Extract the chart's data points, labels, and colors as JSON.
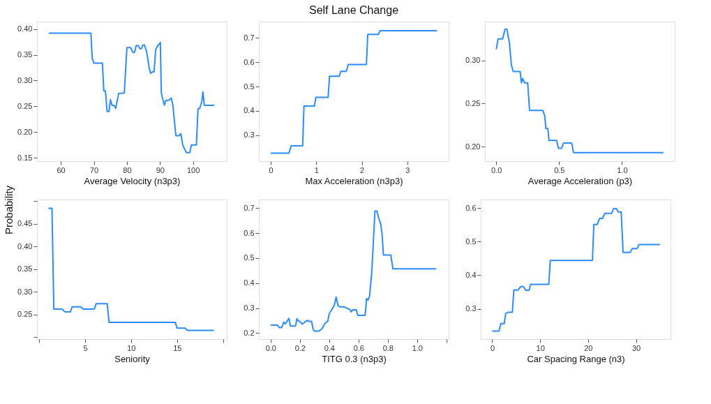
{
  "chart_data": [
    {
      "type": "line",
      "ylabel": "Probability",
      "xlabel": "Average Velocity (n3p3)",
      "xlim": [
        52.8,
        110.2
      ],
      "ylim": [
        0.1434,
        0.4145
      ],
      "xticks": [
        60,
        70,
        80,
        90,
        100
      ],
      "yticks": [
        {
          "value": 0.15,
          "label": "0.15"
        },
        {
          "value": 0.2,
          "label": "0.20"
        },
        {
          "value": 0.25,
          "label": "0.25"
        },
        {
          "value": 0.3,
          "label": "0.30"
        },
        {
          "value": 0.35,
          "label": "0.35"
        },
        {
          "value": 0.4,
          "label": "0.40"
        }
      ],
      "series": [
        {
          "color": "#2b8cff",
          "x": [
            56.4,
            69.1,
            69.5,
            70,
            72.6,
            73,
            73.5,
            74,
            74.6,
            75,
            75.5,
            76.1,
            76.6,
            77.5,
            79.2,
            80,
            81.1,
            81.8,
            82.3,
            82.8,
            83.4,
            83.9,
            84.4,
            84.8,
            85.3,
            86,
            86.7,
            87.2,
            87.7,
            88.2,
            88.7,
            89.4,
            89.7,
            90.1,
            90.4,
            91.3,
            91.7,
            92.7,
            93.4,
            93.9,
            94.8,
            95.8,
            96.3,
            96.9,
            98,
            99,
            99.5,
            101,
            101.5,
            102,
            102.6,
            103,
            103.4,
            106.4
          ],
          "values": [
            0.392,
            0.392,
            0.343,
            0.334,
            0.334,
            0.28,
            0.28,
            0.24,
            0.24,
            0.263,
            0.252,
            0.252,
            0.246,
            0.275,
            0.276,
            0.364,
            0.364,
            0.355,
            0.355,
            0.368,
            0.368,
            0.362,
            0.362,
            0.369,
            0.369,
            0.355,
            0.325,
            0.314,
            0.317,
            0.317,
            0.36,
            0.369,
            0.37,
            0.374,
            0.276,
            0.252,
            0.261,
            0.262,
            0.266,
            0.252,
            0.193,
            0.193,
            0.197,
            0.174,
            0.16,
            0.16,
            0.175,
            0.175,
            0.245,
            0.246,
            0.258,
            0.278,
            0.252,
            0.252
          ]
        }
      ]
    },
    {
      "type": "line",
      "title": "Self Lane Change",
      "xlabel": "Max Acceleration (n3p3)",
      "xlim": [
        -0.26,
        3.905
      ],
      "ylim": [
        0.194,
        0.766
      ],
      "xticks": [
        0,
        1,
        2,
        3
      ],
      "yticks": [
        0.3,
        0.4,
        0.5,
        0.6,
        0.7
      ],
      "series": [
        {
          "color": "#2b8cff",
          "x": [
            0,
            0.4,
            0.45,
            0.7,
            0.73,
            0.96,
            0.99,
            1.26,
            1.29,
            1.5,
            1.54,
            1.66,
            1.7,
            2.1,
            2.13,
            2.36,
            2.4,
            3.65
          ],
          "values": [
            0.227,
            0.227,
            0.257,
            0.257,
            0.42,
            0.42,
            0.456,
            0.456,
            0.542,
            0.542,
            0.562,
            0.562,
            0.59,
            0.59,
            0.714,
            0.714,
            0.729,
            0.729
          ]
        }
      ]
    },
    {
      "type": "line",
      "xlabel": "Average Acceleration (p3)",
      "xlim": [
        -0.09,
        1.42
      ],
      "ylim": [
        0.183,
        0.345
      ],
      "xticks": [
        {
          "value": 0,
          "label": "0.0"
        },
        0.5,
        {
          "value": 1,
          "label": "1.0"
        }
      ],
      "yticks": [
        {
          "value": 0.2,
          "label": "0.20"
        },
        0.25,
        {
          "value": 0.3,
          "label": "0.30"
        }
      ],
      "series": [
        {
          "color": "#2b8cff",
          "x": [
            0,
            0.015,
            0.05,
            0.07,
            0.085,
            0.105,
            0.12,
            0.135,
            0.19,
            0.2,
            0.21,
            0.225,
            0.25,
            0.265,
            0.37,
            0.385,
            0.395,
            0.41,
            0.42,
            0.48,
            0.495,
            0.52,
            0.535,
            0.6,
            0.615,
            1.33
          ],
          "values": [
            0.313,
            0.325,
            0.325,
            0.336,
            0.336,
            0.32,
            0.295,
            0.287,
            0.287,
            0.274,
            0.279,
            0.274,
            0.274,
            0.242,
            0.242,
            0.236,
            0.221,
            0.221,
            0.207,
            0.207,
            0.198,
            0.198,
            0.204,
            0.204,
            0.193,
            0.193
          ]
        }
      ]
    },
    {
      "type": "line",
      "xlabel": "Seniority",
      "xlim": [
        -0.23,
        20.4
      ],
      "ylim": [
        0.196,
        0.503
      ],
      "xticks": [
        {
          "value": 0,
          "label": null
        },
        5,
        10,
        15,
        {
          "value": 20,
          "label": null
        }
      ],
      "yticks": [
        {
          "value": 0.2,
          "label": null
        },
        {
          "value": 0.25,
          "label": "0.25"
        },
        {
          "value": 0.3,
          "label": "0.30"
        },
        {
          "value": 0.35,
          "label": "0.35"
        },
        {
          "value": 0.4,
          "label": "0.40"
        },
        {
          "value": 0.45,
          "label": "0.45"
        },
        {
          "value": 0.5,
          "label": null
        }
      ],
      "series": [
        {
          "color": "#2b8cff",
          "x": [
            1,
            1.4,
            1.6,
            2.5,
            2.8,
            3.4,
            3.6,
            4.5,
            4.8,
            6,
            6.2,
            7.4,
            7.6,
            14.8,
            15,
            15.9,
            16.1,
            19
          ],
          "values": [
            0.484,
            0.484,
            0.262,
            0.262,
            0.256,
            0.256,
            0.267,
            0.267,
            0.262,
            0.262,
            0.274,
            0.274,
            0.233,
            0.233,
            0.22,
            0.22,
            0.215,
            0.215
          ]
        }
      ]
    },
    {
      "type": "line",
      "xlabel": "TITG 0.3 (n3p3)",
      "xlim": [
        -0.08,
        1.215
      ],
      "ylim": [
        0.176,
        0.734
      ],
      "xticks": [
        {
          "value": 0,
          "label": "0.0"
        },
        0.2,
        0.4,
        0.6,
        0.8,
        {
          "value": 1,
          "label": "1.0"
        },
        {
          "value": 1.2,
          "label": null
        }
      ],
      "yticks": [
        0.2,
        0.3,
        0.4,
        0.5,
        0.6,
        0.7
      ],
      "series": [
        {
          "color": "#2b8cff",
          "x": [
            0,
            0.045,
            0.06,
            0.075,
            0.09,
            0.1,
            0.125,
            0.135,
            0.17,
            0.18,
            0.19,
            0.2,
            0.215,
            0.25,
            0.26,
            0.28,
            0.29,
            0.3,
            0.33,
            0.35,
            0.37,
            0.39,
            0.4,
            0.42,
            0.435,
            0.447,
            0.46,
            0.47,
            0.5,
            0.52,
            0.54,
            0.55,
            0.56,
            0.585,
            0.595,
            0.645,
            0.655,
            0.665,
            0.675,
            0.69,
            0.712,
            0.725,
            0.74,
            0.75,
            0.76,
            0.77,
            0.82,
            0.835,
            1.13
          ],
          "values": [
            0.232,
            0.232,
            0.222,
            0.222,
            0.244,
            0.237,
            0.259,
            0.228,
            0.228,
            0.258,
            0.248,
            0.247,
            0.236,
            0.251,
            0.247,
            0.247,
            0.215,
            0.208,
            0.208,
            0.217,
            0.238,
            0.248,
            0.278,
            0.297,
            0.312,
            0.344,
            0.31,
            0.305,
            0.305,
            0.3,
            0.295,
            0.285,
            0.293,
            0.293,
            0.271,
            0.271,
            0.338,
            0.332,
            0.348,
            0.44,
            0.688,
            0.688,
            0.655,
            0.64,
            0.6,
            0.512,
            0.512,
            0.457,
            0.457
          ]
        }
      ]
    },
    {
      "type": "line",
      "xlabel": "Car Spacing Range (n3)",
      "xlim": [
        -2.4,
        37.2
      ],
      "ylim": [
        0.21,
        0.625
      ],
      "xticks": [
        0,
        10,
        20,
        30
      ],
      "yticks": [
        0.3,
        0.4,
        0.5,
        0.6
      ],
      "series": [
        {
          "color": "#2b8cff",
          "x": [
            0,
            1.4,
            1.8,
            2.5,
            2.8,
            3.4,
            4.2,
            4.5,
            5.4,
            5.9,
            6.5,
            7,
            7.7,
            8,
            11.8,
            12.1,
            20.9,
            21.2,
            21.9,
            22.4,
            23,
            23.5,
            24.9,
            25.3,
            25.9,
            26.3,
            26.9,
            27.3,
            28.8,
            29.2,
            30.2,
            30.6,
            35
          ],
          "values": [
            0.234,
            0.234,
            0.256,
            0.256,
            0.286,
            0.29,
            0.29,
            0.356,
            0.356,
            0.366,
            0.366,
            0.355,
            0.355,
            0.373,
            0.373,
            0.444,
            0.444,
            0.551,
            0.551,
            0.569,
            0.569,
            0.584,
            0.584,
            0.598,
            0.598,
            0.588,
            0.588,
            0.468,
            0.468,
            0.479,
            0.479,
            0.491,
            0.491
          ]
        }
      ]
    }
  ]
}
